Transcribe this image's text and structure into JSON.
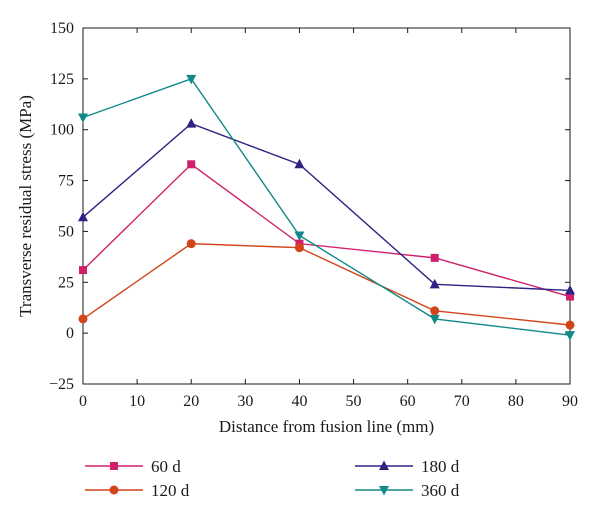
{
  "chart_data": {
    "type": "line",
    "title": "",
    "xlabel": "Distance from fusion line (mm)",
    "ylabel": "Transverse residual stress (MPa)",
    "xlim": [
      0,
      90
    ],
    "ylim": [
      -25,
      150
    ],
    "xticks": [
      0,
      10,
      20,
      30,
      40,
      50,
      60,
      70,
      80,
      90
    ],
    "xtick_labels": [
      "0",
      "10",
      "20",
      "30",
      "40",
      "50",
      "60",
      "70",
      "80",
      "90"
    ],
    "yticks": [
      -25,
      0,
      25,
      50,
      75,
      100,
      125,
      150
    ],
    "ytick_labels": [
      "−25",
      "0",
      "25",
      "50",
      "75",
      "100",
      "125",
      "150"
    ],
    "grid": false,
    "legend_position": "below",
    "series": [
      {
        "name": "60 d",
        "color": "#d1206b",
        "marker": "square",
        "x": [
          0,
          20,
          40,
          65,
          90
        ],
        "y": [
          31,
          83,
          44,
          37,
          18
        ]
      },
      {
        "name": "120 d",
        "color": "#d2441a",
        "marker": "circle",
        "x": [
          0,
          20,
          40,
          65,
          90
        ],
        "y": [
          7,
          44,
          42,
          11,
          4
        ]
      },
      {
        "name": "180 d",
        "color": "#2e2383",
        "marker": "triangle-up",
        "x": [
          0,
          20,
          40,
          65,
          90
        ],
        "y": [
          57,
          103,
          83,
          24,
          21
        ]
      },
      {
        "name": "360 d",
        "color": "#108a89",
        "marker": "triangle-down",
        "x": [
          0,
          20,
          40,
          65,
          90
        ],
        "y": [
          106,
          125,
          48,
          7,
          -1
        ]
      }
    ]
  }
}
